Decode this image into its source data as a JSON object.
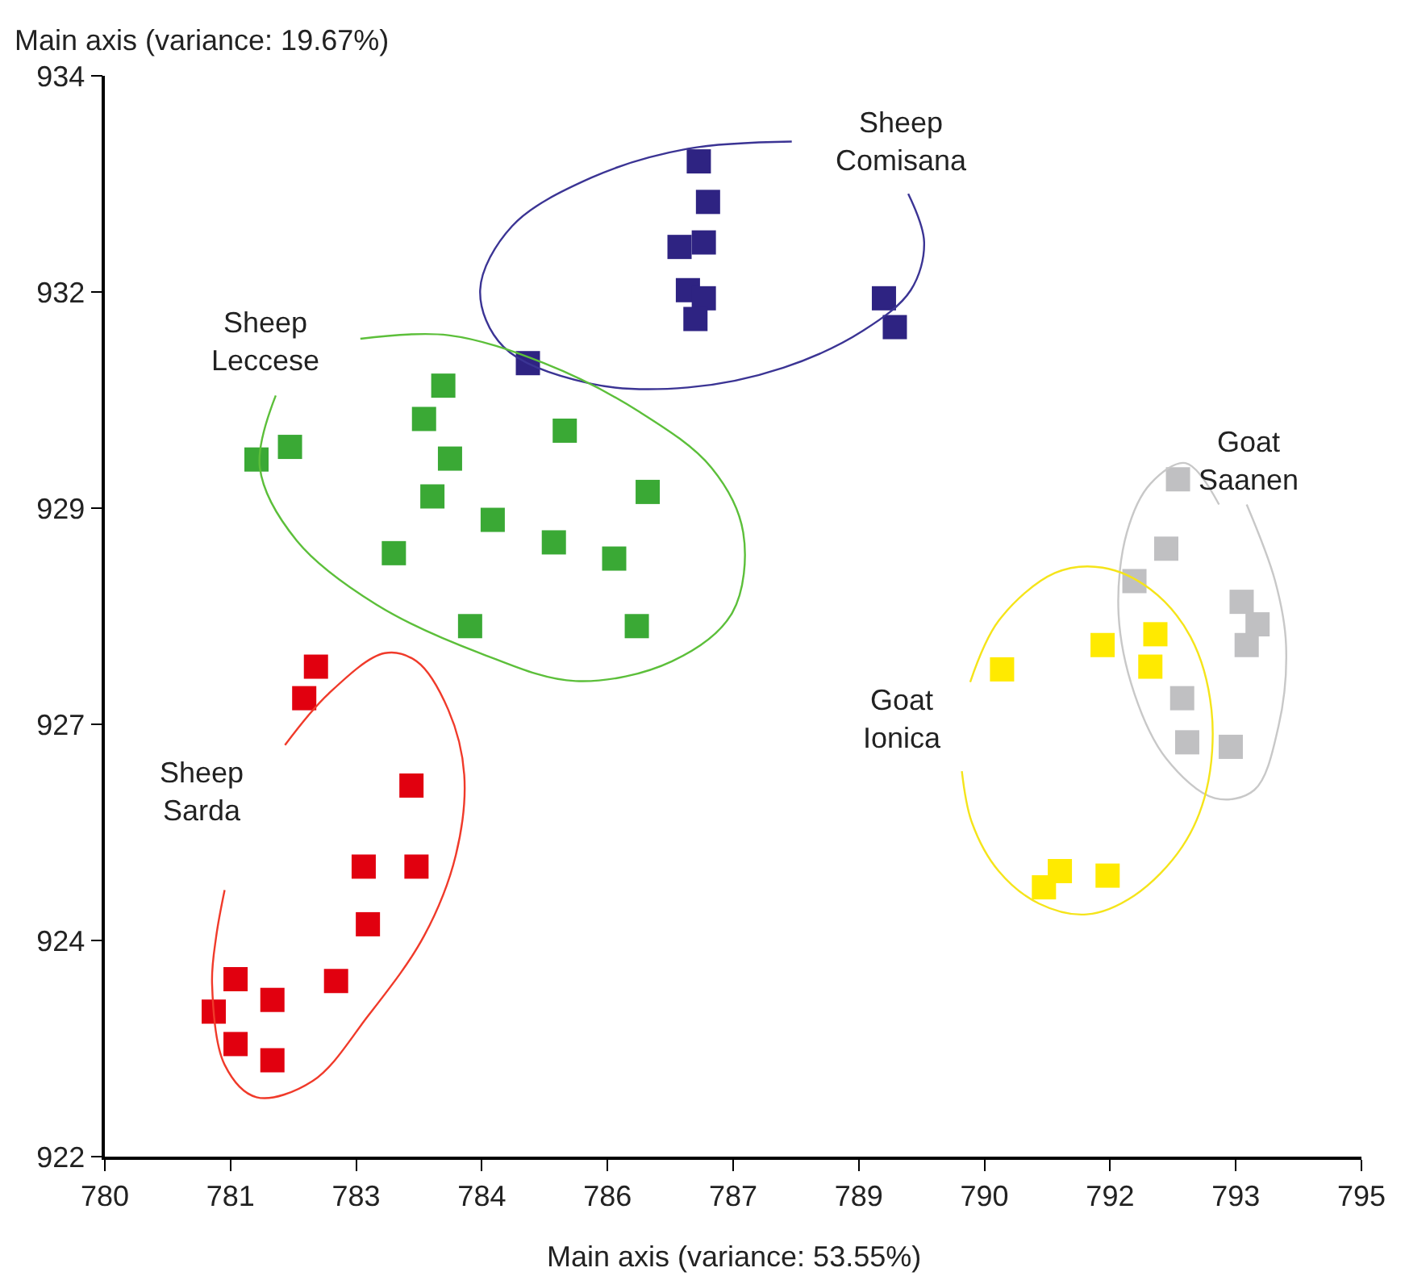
{
  "chart_data": {
    "type": "scatter",
    "xlabel": "Main axis (variance: 53.55%)",
    "ylabel": "Main axis (variance: 19.67%)",
    "xlim": [
      780,
      795
    ],
    "xticks": [
      780,
      {
        "value": 781.5,
        "label": "781"
      },
      783,
      {
        "value": 784.5,
        "label": "784"
      },
      786,
      {
        "value": 787.5,
        "label": "787"
      },
      789,
      {
        "value": 790.5,
        "label": "790"
      },
      792,
      {
        "value": 793.5,
        "label": "793"
      },
      795
    ],
    "ylim": [
      922,
      934
    ],
    "yticks": [
      922,
      {
        "value": 924.4,
        "label": "924"
      },
      {
        "value": 926.8,
        "label": "927"
      },
      {
        "value": 929.2,
        "label": "929"
      },
      {
        "value": 931.6,
        "label": "932"
      },
      934
    ],
    "legend": false,
    "marker": "square",
    "series": [
      {
        "color": "#2e2382",
        "x": [
          787.09,
          787.2,
          787.15,
          786.86,
          786.96,
          787.15,
          787.05,
          785.05,
          789.3,
          789.43
        ],
        "values": [
          933.05,
          932.6,
          932.15,
          932.1,
          931.62,
          931.53,
          931.3,
          930.81,
          931.53,
          931.21
        ]
      },
      {
        "color": "#3aa935",
        "x": [
          782.21,
          781.81,
          784.04,
          783.81,
          784.12,
          783.91,
          783.45,
          784.63,
          785.36,
          786.08,
          785.49,
          786.48,
          784.36,
          786.35
        ],
        "values": [
          929.88,
          929.74,
          930.56,
          930.19,
          929.75,
          929.33,
          928.7,
          929.07,
          928.82,
          928.64,
          930.06,
          929.38,
          927.89,
          927.89
        ]
      },
      {
        "color": "#e1000f",
        "x": [
          782.52,
          782.38,
          783.66,
          783.72,
          783.09,
          783.14,
          782.76,
          781.56,
          781.3,
          782.0,
          782.0,
          781.56
        ],
        "values": [
          927.44,
          927.09,
          926.12,
          925.22,
          925.22,
          924.58,
          923.95,
          923.97,
          923.61,
          923.74,
          923.07,
          923.25
        ]
      },
      {
        "color": "#c0c0c2",
        "x": [
          792.81,
          792.67,
          792.29,
          793.57,
          793.63,
          792.86,
          792.92,
          793.44,
          793.76
        ],
        "values": [
          929.52,
          928.75,
          928.39,
          928.16,
          927.68,
          927.09,
          926.6,
          926.55,
          927.91
        ]
      },
      {
        "color": "#ffea00",
        "x": [
          790.71,
          791.91,
          792.54,
          792.48,
          791.4,
          791.97,
          791.21
        ],
        "values": [
          927.41,
          927.68,
          927.8,
          927.44,
          925.17,
          925.12,
          924.99
        ]
      },
      {
        "type": "line",
        "marker": "none",
        "name": "Sheep\nComisana",
        "color": "#3b3494",
        "x": [
          788.2,
          786.96,
          785.81,
          784.86,
          784.48,
          784.76,
          785.81,
          786.96,
          788.1,
          789.05,
          789.62,
          789.78,
          789.59
        ],
        "values": [
          933.27,
          933.19,
          932.87,
          932.33,
          931.62,
          930.99,
          930.58,
          930.54,
          930.76,
          931.17,
          931.62,
          932.15,
          932.69
        ]
      },
      {
        "type": "line",
        "marker": "none",
        "name": "Sheep\nLeccese",
        "color": "#5cbf3a",
        "x": [
          783.05,
          784.1,
          785.24,
          786.38,
          787.24,
          787.62,
          787.49,
          786.77,
          785.62,
          784.48,
          783.24,
          782.29,
          781.85,
          782.04
        ],
        "values": [
          931.08,
          931.12,
          930.81,
          930.27,
          929.65,
          928.93,
          928.04,
          927.5,
          927.28,
          927.59,
          928.13,
          928.84,
          929.65,
          930.45
        ]
      },
      {
        "type": "line",
        "marker": "none",
        "name": "Sheep\nSarda",
        "color": "#f03a2a",
        "x": [
          782.15,
          782.67,
          783.34,
          783.72,
          784.1,
          784.29,
          784.19,
          783.81,
          783.14,
          782.48,
          781.81,
          781.43,
          781.28,
          781.33,
          781.43
        ],
        "values": [
          926.57,
          927.14,
          927.59,
          927.5,
          926.96,
          926.24,
          925.35,
          924.45,
          923.56,
          922.84,
          922.66,
          923.02,
          923.92,
          924.45,
          924.96
        ]
      },
      {
        "type": "line",
        "marker": "none",
        "name": "Goat\nSaanen",
        "color": "#c8c8c8",
        "x": [
          793.3,
          792.9,
          792.48,
          792.2,
          792.1,
          792.29,
          792.67,
          793.25,
          793.72,
          794.01,
          794.1,
          793.97,
          793.63
        ],
        "values": [
          929.24,
          929.7,
          929.47,
          928.93,
          928.04,
          927.14,
          926.42,
          925.98,
          926.07,
          926.78,
          927.68,
          928.39,
          929.24
        ]
      },
      {
        "type": "line",
        "marker": "none",
        "name": "Goat\nIonica",
        "color": "#f5e41a",
        "x": [
          790.33,
          790.67,
          791.34,
          791.91,
          792.48,
          792.96,
          793.21,
          793.15,
          792.86,
          792.29,
          791.72,
          791.15,
          790.67,
          790.35,
          790.23
        ],
        "values": [
          927.27,
          927.95,
          928.48,
          928.54,
          928.3,
          927.77,
          926.96,
          926.07,
          925.44,
          924.9,
          924.69,
          924.81,
          925.17,
          925.71,
          926.28
        ]
      }
    ]
  }
}
